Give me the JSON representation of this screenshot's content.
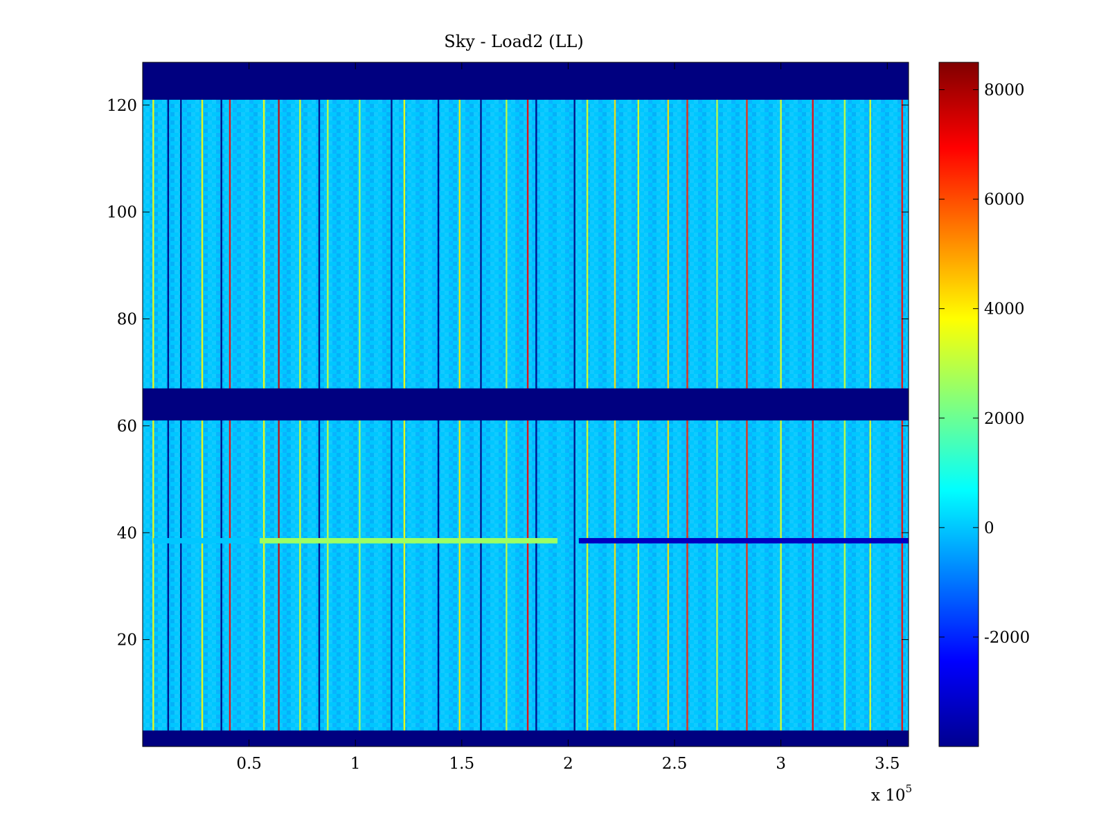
{
  "chart_data": {
    "type": "heatmap",
    "title": "Sky - Load2 (LL)",
    "xlabel": "",
    "ylabel": "",
    "xlim": [
      0,
      360000
    ],
    "ylim": [
      0,
      128
    ],
    "x_ticks": [
      {
        "value": 50000,
        "label": "0.5"
      },
      {
        "value": 100000,
        "label": "1"
      },
      {
        "value": 150000,
        "label": "1.5"
      },
      {
        "value": 200000,
        "label": "2"
      },
      {
        "value": 250000,
        "label": "2.5"
      },
      {
        "value": 300000,
        "label": "3"
      },
      {
        "value": 350000,
        "label": "3.5"
      }
    ],
    "x_multiplier": {
      "base": "x 10",
      "exponent": "5"
    },
    "y_ticks": [
      {
        "value": 20,
        "label": "20"
      },
      {
        "value": 40,
        "label": "40"
      },
      {
        "value": 60,
        "label": "60"
      },
      {
        "value": 80,
        "label": "80"
      },
      {
        "value": 100,
        "label": "100"
      },
      {
        "value": 120,
        "label": "120"
      }
    ],
    "colormap": "jet",
    "color_range": [
      -4000,
      8500
    ],
    "colorbar_ticks": [
      {
        "value": -2000,
        "label": "-2000"
      },
      {
        "value": 0,
        "label": "0"
      },
      {
        "value": 2000,
        "label": "2000"
      },
      {
        "value": 4000,
        "label": "4000"
      },
      {
        "value": 6000,
        "label": "6000"
      },
      {
        "value": 8000,
        "label": "8000"
      }
    ],
    "background_value": 0,
    "masked_row_bands": [
      {
        "from": 0,
        "to": 3,
        "value": -4000
      },
      {
        "from": 61,
        "to": 67,
        "value": -4000
      },
      {
        "from": 121,
        "to": 128,
        "value": -4000
      }
    ],
    "highlighted_row": {
      "row_from": 38,
      "row_to": 39,
      "segments": [
        {
          "x_from": 5000,
          "x_to": 55000,
          "value": 0
        },
        {
          "x_from": 55000,
          "x_to": 195000,
          "value": 2600
        },
        {
          "x_from": 205000,
          "x_to": 360000,
          "value": -3200
        }
      ]
    },
    "vertical_streaks": [
      {
        "x": 5000,
        "value": 3800
      },
      {
        "x": 12000,
        "value": -4000
      },
      {
        "x": 18000,
        "value": -4000
      },
      {
        "x": 28000,
        "value": 3800
      },
      {
        "x": 37000,
        "value": -4000
      },
      {
        "x": 41000,
        "value": 7000
      },
      {
        "x": 57000,
        "value": 3800
      },
      {
        "x": 64000,
        "value": 7500
      },
      {
        "x": 74000,
        "value": 3500
      },
      {
        "x": 83000,
        "value": -4000
      },
      {
        "x": 87000,
        "value": 3200
      },
      {
        "x": 102000,
        "value": 3000
      },
      {
        "x": 117000,
        "value": -4000
      },
      {
        "x": 123000,
        "value": 3800
      },
      {
        "x": 139000,
        "value": -4000
      },
      {
        "x": 149000,
        "value": 4000
      },
      {
        "x": 159000,
        "value": -4000
      },
      {
        "x": 171000,
        "value": 3200
      },
      {
        "x": 181000,
        "value": 7000
      },
      {
        "x": 185000,
        "value": -4000
      },
      {
        "x": 203000,
        "value": -4000
      },
      {
        "x": 209000,
        "value": 3500
      },
      {
        "x": 222000,
        "value": 4200
      },
      {
        "x": 233000,
        "value": 3500
      },
      {
        "x": 247000,
        "value": 4200
      },
      {
        "x": 256000,
        "value": 6500
      },
      {
        "x": 270000,
        "value": 3200
      },
      {
        "x": 284000,
        "value": 6500
      },
      {
        "x": 300000,
        "value": 3500
      },
      {
        "x": 315000,
        "value": 7000
      },
      {
        "x": 330000,
        "value": 3200
      },
      {
        "x": 342000,
        "value": 3500
      },
      {
        "x": 357000,
        "value": 6800
      }
    ]
  }
}
